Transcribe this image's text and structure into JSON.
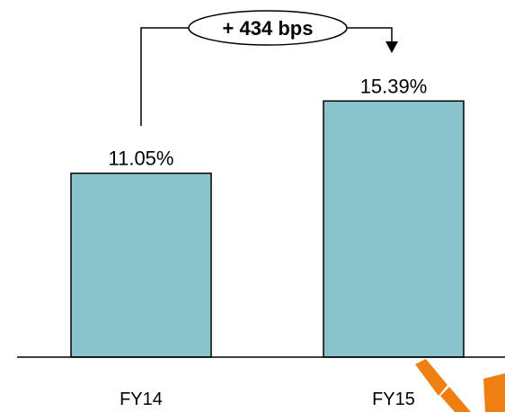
{
  "colors": {
    "bar_fill": "#89c4cc",
    "bar_stroke": "#000000",
    "axis": "#000000",
    "background": "#ffffff",
    "logo": "#f07f12"
  },
  "chart_data": {
    "type": "bar",
    "title": "",
    "xlabel": "",
    "ylabel": "",
    "categories": [
      "FY14",
      "FY15"
    ],
    "values": [
      11.05,
      15.39
    ],
    "value_labels": [
      "11.05%",
      "15.39%"
    ],
    "ylim": [
      0,
      20
    ],
    "grid": false,
    "legend": "none",
    "annotation": {
      "text": "+ 434 bps",
      "from_category": "FY14",
      "to_category": "FY15"
    }
  },
  "logo": {
    "icon": "brand-logo-fragment-icon"
  }
}
